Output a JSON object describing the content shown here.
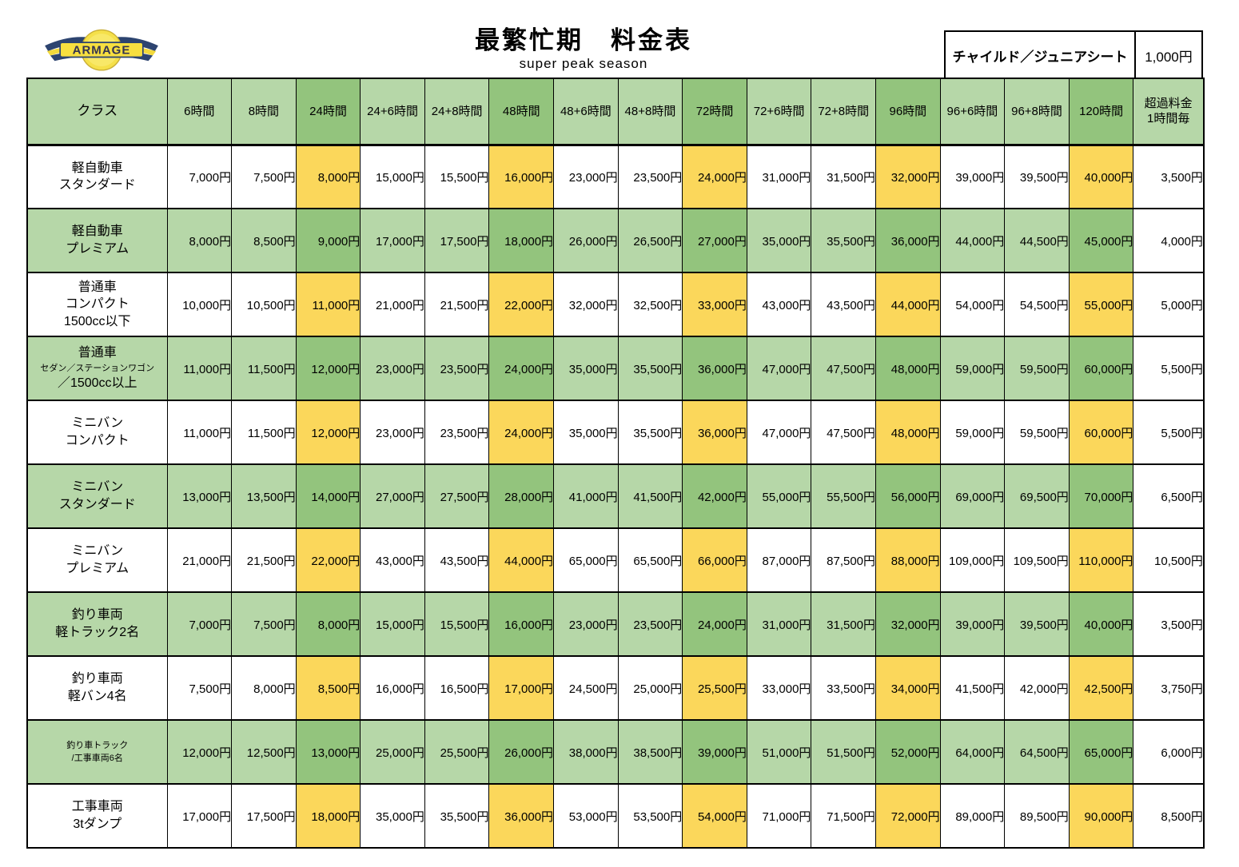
{
  "logo": {
    "text": "ARMAGE"
  },
  "header": {
    "title": "最繁忙期　料金表",
    "subtitle": "super peak season"
  },
  "child_seat": {
    "label": "チャイルド／ジュニアシート",
    "price": "1,000円"
  },
  "colors": {
    "light_green": "#b6d7a8",
    "dark_green": "#93c47d",
    "yellow": "#fbd75b"
  },
  "table": {
    "class_header": "クラス",
    "columns": [
      "6時間",
      "8時間",
      "24時間",
      "24+6時間",
      "24+8時間",
      "48時間",
      "48+6時間",
      "48+8時間",
      "72時間",
      "72+6時間",
      "72+8時間",
      "96時間",
      "96+6時間",
      "96+8時間",
      "120時間"
    ],
    "highlight_columns": [
      2,
      5,
      8,
      11,
      14
    ],
    "overage_header_lines": [
      "超過料金",
      "1時間毎"
    ],
    "rows": [
      {
        "shade": "white",
        "class_lines": [
          {
            "text": "軽自動車"
          },
          {
            "text": "スタンダード"
          }
        ],
        "prices": [
          "7,000円",
          "7,500円",
          "8,000円",
          "15,000円",
          "15,500円",
          "16,000円",
          "23,000円",
          "23,500円",
          "24,000円",
          "31,000円",
          "31,500円",
          "32,000円",
          "39,000円",
          "39,500円",
          "40,000円",
          "3,500円"
        ]
      },
      {
        "shade": "green",
        "class_lines": [
          {
            "text": "軽自動車"
          },
          {
            "text": "プレミアム"
          }
        ],
        "prices": [
          "8,000円",
          "8,500円",
          "9,000円",
          "17,000円",
          "17,500円",
          "18,000円",
          "26,000円",
          "26,500円",
          "27,000円",
          "35,000円",
          "35,500円",
          "36,000円",
          "44,000円",
          "44,500円",
          "45,000円",
          "4,000円"
        ]
      },
      {
        "shade": "white",
        "class_lines": [
          {
            "text": "普通車"
          },
          {
            "text": "コンパクト"
          },
          {
            "text": "1500cc以下"
          }
        ],
        "prices": [
          "10,000円",
          "10,500円",
          "11,000円",
          "21,000円",
          "21,500円",
          "22,000円",
          "32,000円",
          "32,500円",
          "33,000円",
          "43,000円",
          "43,500円",
          "44,000円",
          "54,000円",
          "54,500円",
          "55,000円",
          "5,000円"
        ]
      },
      {
        "shade": "green",
        "class_lines": [
          {
            "text": "普通車"
          },
          {
            "text": "セダン／ステーションワゴン",
            "small": true
          },
          {
            "text": "／1500cc以上"
          }
        ],
        "prices": [
          "11,000円",
          "11,500円",
          "12,000円",
          "23,000円",
          "23,500円",
          "24,000円",
          "35,000円",
          "35,500円",
          "36,000円",
          "47,000円",
          "47,500円",
          "48,000円",
          "59,000円",
          "59,500円",
          "60,000円",
          "5,500円"
        ]
      },
      {
        "shade": "white",
        "class_lines": [
          {
            "text": "ミニバン"
          },
          {
            "text": "コンパクト"
          }
        ],
        "prices": [
          "11,000円",
          "11,500円",
          "12,000円",
          "23,000円",
          "23,500円",
          "24,000円",
          "35,000円",
          "35,500円",
          "36,000円",
          "47,000円",
          "47,500円",
          "48,000円",
          "59,000円",
          "59,500円",
          "60,000円",
          "5,500円"
        ]
      },
      {
        "shade": "green",
        "class_lines": [
          {
            "text": "ミニバン"
          },
          {
            "text": "スタンダード"
          }
        ],
        "prices": [
          "13,000円",
          "13,500円",
          "14,000円",
          "27,000円",
          "27,500円",
          "28,000円",
          "41,000円",
          "41,500円",
          "42,000円",
          "55,000円",
          "55,500円",
          "56,000円",
          "69,000円",
          "69,500円",
          "70,000円",
          "6,500円"
        ]
      },
      {
        "shade": "white",
        "class_lines": [
          {
            "text": "ミニバン"
          },
          {
            "text": "プレミアム"
          }
        ],
        "prices": [
          "21,000円",
          "21,500円",
          "22,000円",
          "43,000円",
          "43,500円",
          "44,000円",
          "65,000円",
          "65,500円",
          "66,000円",
          "87,000円",
          "87,500円",
          "88,000円",
          "109,000円",
          "109,500円",
          "110,000円",
          "10,500円"
        ]
      },
      {
        "shade": "green",
        "class_lines": [
          {
            "text": "釣り車両"
          },
          {
            "text": "軽トラック2名"
          }
        ],
        "prices": [
          "7,000円",
          "7,500円",
          "8,000円",
          "15,000円",
          "15,500円",
          "16,000円",
          "23,000円",
          "23,500円",
          "24,000円",
          "31,000円",
          "31,500円",
          "32,000円",
          "39,000円",
          "39,500円",
          "40,000円",
          "3,500円"
        ]
      },
      {
        "shade": "white",
        "class_lines": [
          {
            "text": "釣り車両"
          },
          {
            "text": "軽バン4名"
          }
        ],
        "prices": [
          "7,500円",
          "8,000円",
          "8,500円",
          "16,000円",
          "16,500円",
          "17,000円",
          "24,500円",
          "25,000円",
          "25,500円",
          "33,000円",
          "33,500円",
          "34,000円",
          "41,500円",
          "42,000円",
          "42,500円",
          "3,750円"
        ]
      },
      {
        "shade": "green",
        "class_lines": [
          {
            "text": "釣り車トラック",
            "small": true
          },
          {
            "text": "/工事車両6名",
            "small": true
          }
        ],
        "prices": [
          "12,000円",
          "12,500円",
          "13,000円",
          "25,000円",
          "25,500円",
          "26,000円",
          "38,000円",
          "38,500円",
          "39,000円",
          "51,000円",
          "51,500円",
          "52,000円",
          "64,000円",
          "64,500円",
          "65,000円",
          "6,000円"
        ]
      },
      {
        "shade": "white",
        "class_lines": [
          {
            "text": "工事車両"
          },
          {
            "text": "3tダンプ"
          }
        ],
        "prices": [
          "17,000円",
          "17,500円",
          "18,000円",
          "35,000円",
          "35,500円",
          "36,000円",
          "53,000円",
          "53,500円",
          "54,000円",
          "71,000円",
          "71,500円",
          "72,000円",
          "89,000円",
          "89,500円",
          "90,000円",
          "8,500円"
        ]
      }
    ]
  }
}
